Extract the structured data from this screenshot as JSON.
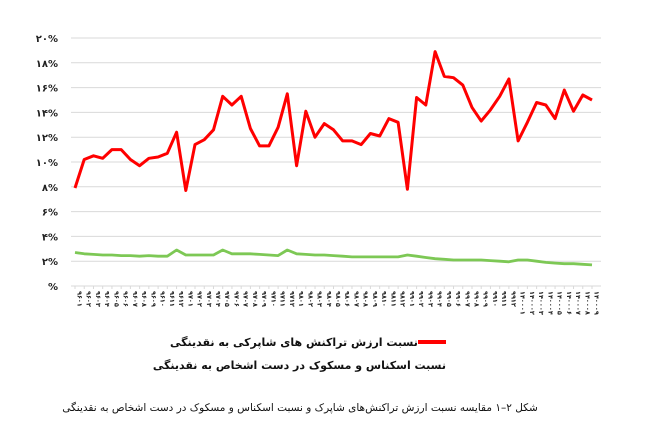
{
  "chart_data": {
    "type": "line",
    "title": "",
    "caption": "شکل ۲–۱ مقایسه نسبت ارزش تراکنش‌های شاپرک و نسبت اسکناس و مسکوک در دست اشخاص به نقدینگی",
    "xlabel": "",
    "ylabel": "",
    "ylim": [
      0,
      20
    ],
    "y_ticks": [
      0,
      2,
      4,
      6,
      8,
      10,
      12,
      14,
      16,
      18,
      20
    ],
    "y_tick_labels": [
      "%",
      "۲%",
      "۴%",
      "۶%",
      "۸%",
      "۱۰%",
      "۱۲%",
      "۱۴%",
      "۱۶%",
      "۱۸%",
      "۲۰%"
    ],
    "grid": "horizontal",
    "legend_position": "bottom",
    "x": [
      "۹۶۰۱",
      "۹۶۰۲",
      "۹۶۰۳",
      "۹۶۰۴",
      "۹۶۰۵",
      "۹۶۰۶",
      "۹۶۰۷",
      "۹۶۰۸",
      "۹۶۰۹",
      "۹۶۱۰",
      "۹۶۱۱",
      "۹۶۱۲",
      "۹۷۰۱",
      "۹۷۰۲",
      "۹۷۰۳",
      "۹۷۰۴",
      "۹۷۰۵",
      "۹۷۰۶",
      "۹۷۰۷",
      "۹۷۰۸",
      "۹۷۰۹",
      "۹۷۱۰",
      "۹۷۱۱",
      "۹۷۱۲",
      "۹۸۰۱",
      "۹۸۰۲",
      "۹۸۰۳",
      "۹۸۰۴",
      "۹۸۰۵",
      "۹۸۰۶",
      "۹۸۰۷",
      "۹۸۰۸",
      "۹۸۰۹",
      "۹۸۱۰",
      "۹۸۱۱",
      "۹۸۱۲",
      "۹۹۰۱",
      "۹۹۰۲",
      "۹۹۰۳",
      "۹۹۰۴",
      "۹۹۰۵",
      "۹۹۰۶",
      "۹۹۰۷",
      "۹۹۰۸",
      "۹۹۰۹",
      "۹۹۱۰",
      "۹۹۱۱",
      "۹۹۱۲",
      "۱۴۰۰۰۱",
      "۱۴۰۰۰۲",
      "۱۴۰۰۰۳",
      "۱۴۰۰۰۴",
      "۱۴۰۰۰۵",
      "۱۴۰۰۰۶",
      "۱۴۰۰۰۷",
      "۱۴۰۰۰۸",
      "۱۴۰۰۰۹"
    ],
    "series": [
      {
        "name": "نسبت ارزش  تراکنش های شاپرکی به نقدینگی",
        "color": "#ff0000",
        "values": [
          7.9,
          10.2,
          10.5,
          10.3,
          11.0,
          11.0,
          10.2,
          9.7,
          10.3,
          10.4,
          10.7,
          12.4,
          7.7,
          11.4,
          11.8,
          12.6,
          15.3,
          14.6,
          15.3,
          12.7,
          11.3,
          11.3,
          12.8,
          15.5,
          9.7,
          14.1,
          12.0,
          13.1,
          12.6,
          11.7,
          11.7,
          11.4,
          12.3,
          12.1,
          13.5,
          13.2,
          7.8,
          15.2,
          14.6,
          18.9,
          16.9,
          16.8,
          16.2,
          14.4,
          13.3,
          14.2,
          15.3,
          16.7,
          11.7,
          13.2,
          14.8,
          14.6,
          13.5,
          15.8,
          14.1,
          15.4,
          15.0
        ]
      },
      {
        "name": "نسبت اسکناس و مسکوک در دست اشخاص  به نقدینگی",
        "color": "#7dc855",
        "values": [
          2.7,
          2.6,
          2.55,
          2.5,
          2.5,
          2.45,
          2.45,
          2.4,
          2.45,
          2.4,
          2.4,
          2.9,
          2.5,
          2.5,
          2.5,
          2.5,
          2.9,
          2.6,
          2.6,
          2.6,
          2.55,
          2.5,
          2.45,
          2.9,
          2.6,
          2.55,
          2.5,
          2.5,
          2.45,
          2.4,
          2.35,
          2.35,
          2.35,
          2.35,
          2.35,
          2.35,
          2.5,
          2.4,
          2.3,
          2.2,
          2.15,
          2.1,
          2.1,
          2.1,
          2.1,
          2.05,
          2.0,
          1.95,
          2.1,
          2.1,
          2.0,
          1.9,
          1.85,
          1.8,
          1.8,
          1.75,
          1.7
        ]
      }
    ]
  }
}
